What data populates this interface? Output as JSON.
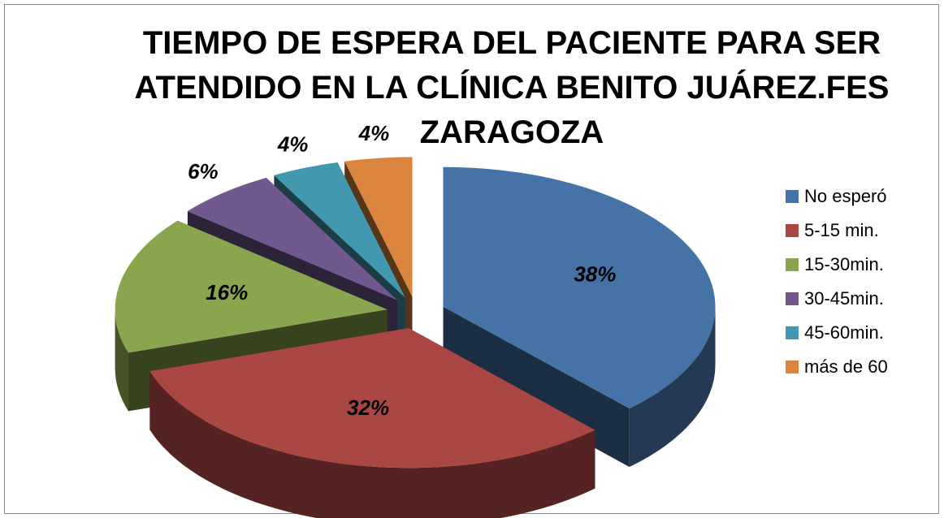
{
  "chart_data": {
    "type": "pie",
    "title": "TIEMPO DE ESPERA DEL PACIENTE PARA SER ATENDIDO EN LA CLÍNICA BENITO JUÁREZ.FES ZARAGOZA",
    "categories": [
      "No esperó",
      "5-15 min.",
      "15-30min.",
      "30-45min.",
      "45-60min.",
      "más de 60"
    ],
    "values": [
      38,
      32,
      16,
      6,
      4,
      4
    ],
    "value_labels": [
      "38%",
      "32%",
      "16%",
      "6%",
      "4%",
      "4%"
    ],
    "colors": [
      "#4572a7",
      "#aa4643",
      "#89a54e",
      "#71588f",
      "#4198af",
      "#db843d"
    ],
    "legend": "right"
  }
}
